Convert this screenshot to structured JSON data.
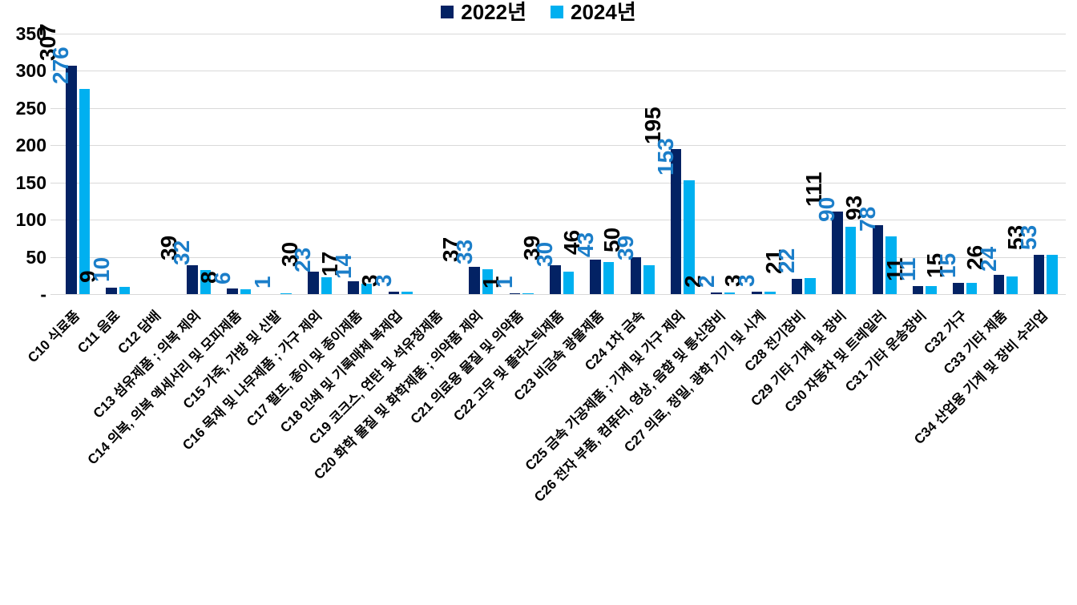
{
  "chart_data": {
    "type": "bar",
    "title": "",
    "xlabel": "",
    "ylabel": "",
    "ylim": [
      0,
      350
    ],
    "ytick_values": [
      0,
      50,
      100,
      150,
      200,
      250,
      300,
      350
    ],
    "ytick_labels": [
      "-",
      "50",
      "100",
      "150",
      "200",
      "250",
      "300",
      "350"
    ],
    "grid": true,
    "gridline_color": "#D9D9D9",
    "legend_position": "bottom",
    "categories": [
      "C10 식료품",
      "C11 음료",
      "C12 담배",
      "C13 섬유제품 ; 의복 제외",
      "C14 의복, 의복 액세서리 및 모피제품",
      "C15 가죽, 가방 및 신발",
      "C16 목재 및 나무제품 ; 가구 제외",
      "C17 펄프, 종이 및 종이제품",
      "C18 인쇄 및 기록매체 복제업",
      "C19 코크스, 연탄 및 석유정제품",
      "C20 화학 물질 및 화학제품 ; 의약품 제외",
      "C21 의료용 물질 및 의약품",
      "C22 고무 및 플라스틱제품",
      "C23 비금속 광물제품",
      "C24 1차 금속",
      "C25 금속 가공제품 ; 기계 및 가구 제외",
      "C26 전자 부품, 컴퓨터, 영상, 음향 및 통신장비",
      "C27 의료, 정밀, 광학 기기 및 시계",
      "C28 전기장비",
      "C29 기타 기계 및 장비",
      "C30 자동차 및 트레일러",
      "C31 기타 운송장비",
      "C32 가구",
      "C33 기타 제품",
      "C34 산업용 기계 및 장비 수리업"
    ],
    "series": [
      {
        "name": "2022년",
        "color": "#032264",
        "label_color": "#000000",
        "values": [
          307,
          9,
          null,
          39,
          8,
          null,
          30,
          17,
          3,
          null,
          37,
          1,
          39,
          46,
          50,
          195,
          2,
          3,
          21,
          111,
          93,
          11,
          15,
          26,
          53
        ]
      },
      {
        "name": "2024년",
        "color": "#00B0F0",
        "label_color": "#1B7EC9",
        "values": [
          276,
          10,
          null,
          32,
          6,
          1,
          23,
          14,
          3,
          null,
          33,
          1,
          30,
          43,
          39,
          153,
          2,
          3,
          22,
          90,
          78,
          11,
          15,
          24,
          53
        ]
      }
    ]
  }
}
